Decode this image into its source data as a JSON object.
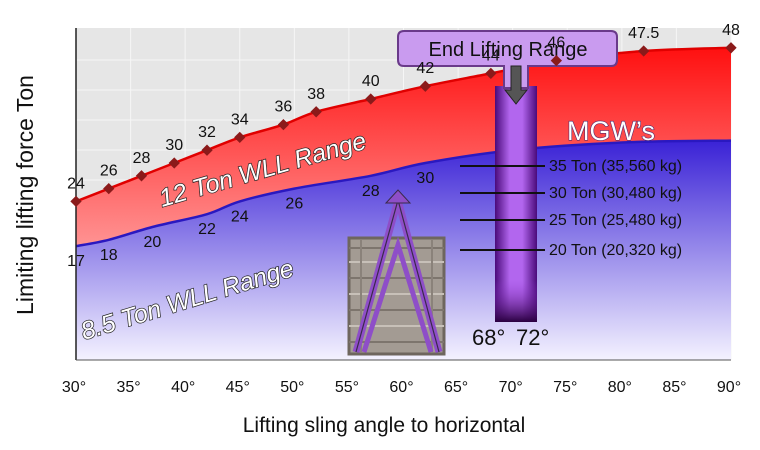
{
  "chart_data": {
    "type": "area",
    "xlabel": "Lifting sling angle to horizontal",
    "ylabel": "Limiting lifting force Ton",
    "xlim": [
      30,
      90
    ],
    "x_ticks": [
      "30°",
      "35°",
      "40°",
      "45°",
      "50°",
      "55°",
      "60°",
      "65°",
      "70°",
      "75°",
      "80°",
      "85°",
      "90°"
    ],
    "grid": true,
    "series": [
      {
        "name": "12 Ton WLL Range",
        "color": "#ff1a1a",
        "x": [
          30,
          33,
          36,
          39,
          42,
          45,
          49,
          52,
          57,
          62,
          68,
          74,
          82,
          90
        ],
        "values": [
          24,
          26,
          28,
          30,
          32,
          34,
          36,
          38,
          40,
          42,
          44,
          46,
          47.5,
          48
        ],
        "labels": [
          "24",
          "26",
          "28",
          "30",
          "32",
          "34",
          "36",
          "38",
          "40",
          "42",
          "44",
          "46",
          "47.5",
          "48"
        ]
      },
      {
        "name": "8.5 Ton WLL Range",
        "color": "#3d2ad8",
        "x": [
          30,
          33,
          37,
          42,
          45,
          50,
          57,
          62
        ],
        "values": [
          17,
          18,
          20,
          22,
          24,
          26,
          28,
          30
        ],
        "labels": [
          "17",
          "18",
          "20",
          "22",
          "24",
          "26",
          "28",
          "30"
        ]
      }
    ],
    "end_lifting_range": {
      "label": "End Lifting Range",
      "from_label": "68°",
      "to_label": "72°",
      "from": 68,
      "to": 72
    },
    "mgw": {
      "title": "MGW’s",
      "entries": [
        "35 Ton  (35,560 kg)",
        "30 Ton (30,480 kg)",
        "25 Ton (25,480 kg)",
        "20 Ton (20,320 kg)"
      ]
    },
    "colors": {
      "plot_background": "#e5e5e5",
      "marker": "#8b1a1a",
      "end_range_bar": "#9a3ed8",
      "callout": "#c79aee",
      "container": "#a09890"
    }
  }
}
